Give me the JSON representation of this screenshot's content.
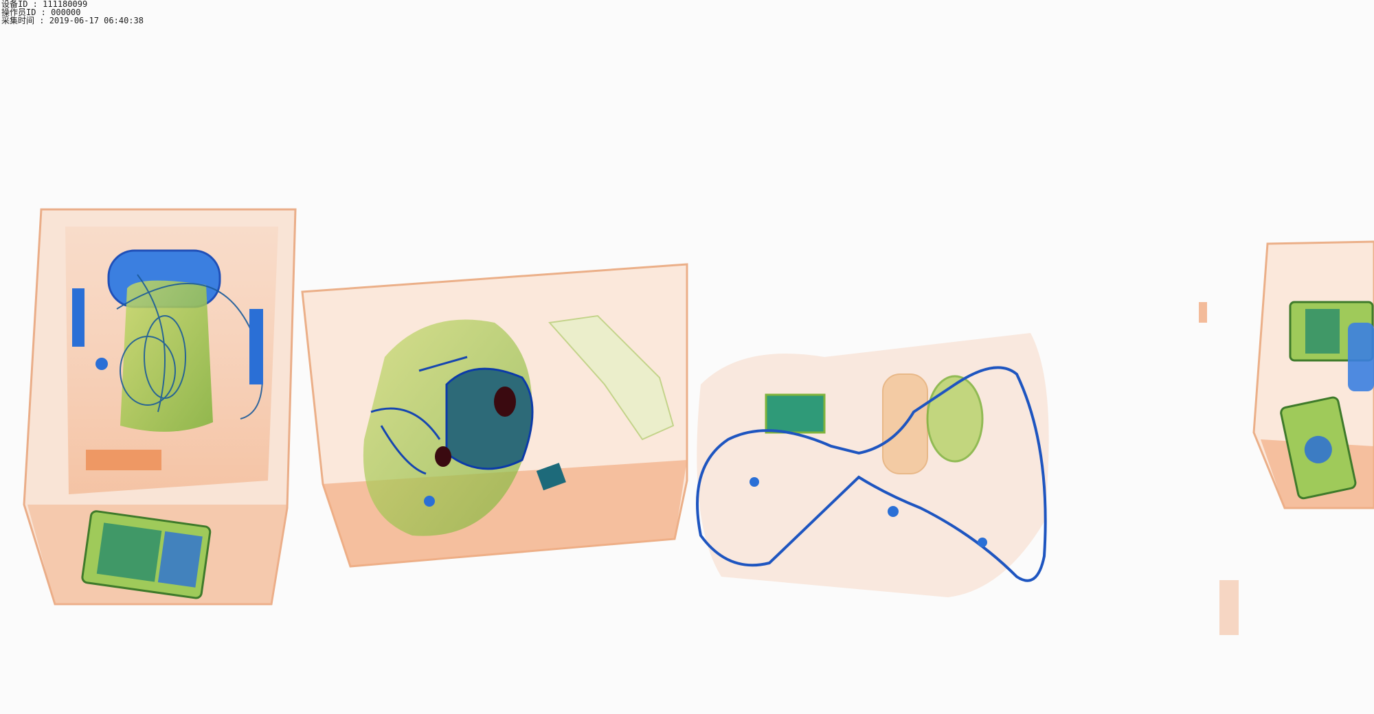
{
  "overlay": {
    "device_id_label": "设备ID",
    "device_id": "111180099",
    "operator_id_label": "操作员ID",
    "operator_id": "000000",
    "capture_time_label": "采集时间",
    "capture_time": "2019-06-17 06:40:38",
    "separator": " : "
  },
  "scan": {
    "colors": {
      "organic": "#f0a070",
      "organic_dark": "#d86a2e",
      "mixed": "#9ec24a",
      "metal": "#2a6fd6",
      "metal_dark": "#0b3aa8"
    }
  }
}
